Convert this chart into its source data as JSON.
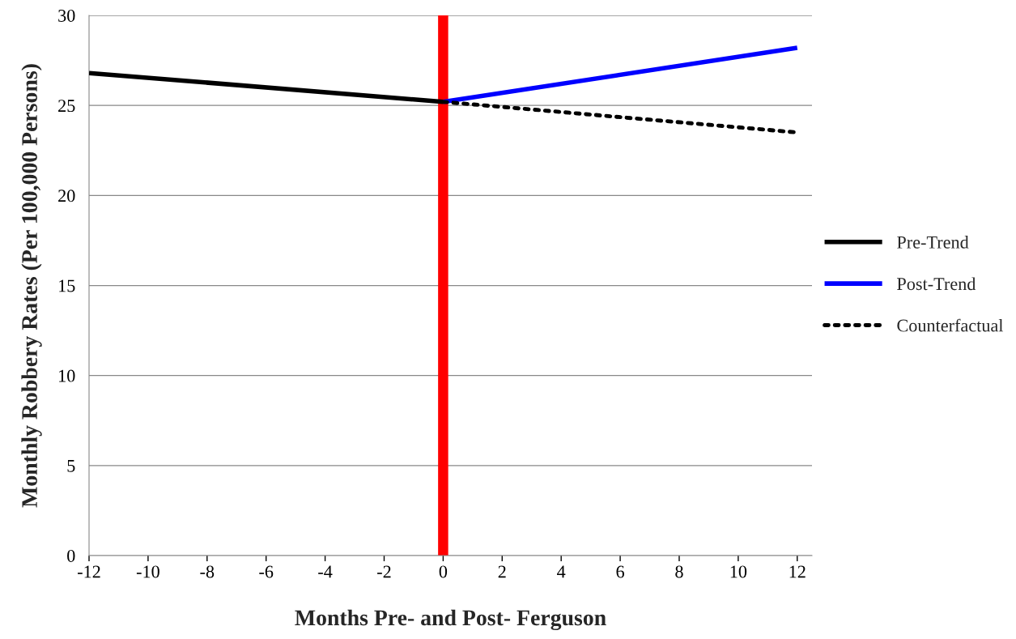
{
  "chart_data": {
    "type": "line",
    "xlabel": "Months Pre- and Post- Ferguson",
    "ylabel": "Monthly Robbery Rates (Per 100,000 Persons)",
    "series": [
      {
        "name": "Pre-Trend",
        "color": "#000000",
        "x": [
          -12,
          0
        ],
        "values": [
          26.8,
          25.2
        ],
        "line_style": "solid"
      },
      {
        "name": "Post-Trend",
        "color": "#0000ff",
        "x": [
          0,
          12
        ],
        "values": [
          25.2,
          28.2
        ],
        "line_style": "solid"
      },
      {
        "name": "Counterfactual",
        "color": "#000000",
        "x": [
          0,
          12
        ],
        "values": [
          25.2,
          23.5
        ],
        "line_style": "dotted"
      }
    ],
    "ref_lines": [
      {
        "axis": "x",
        "value": 0,
        "color": "#ff0000"
      }
    ],
    "xlim": [
      -12,
      12.5
    ],
    "xticks": [
      -12,
      -10,
      -8,
      -6,
      -4,
      -2,
      0,
      2,
      4,
      6,
      8,
      10,
      12
    ],
    "ylim": [
      0,
      30
    ],
    "yticks": [
      0,
      5,
      10,
      15,
      20,
      25,
      30
    ],
    "grid": "y",
    "legend": "right",
    "marker": "none"
  }
}
